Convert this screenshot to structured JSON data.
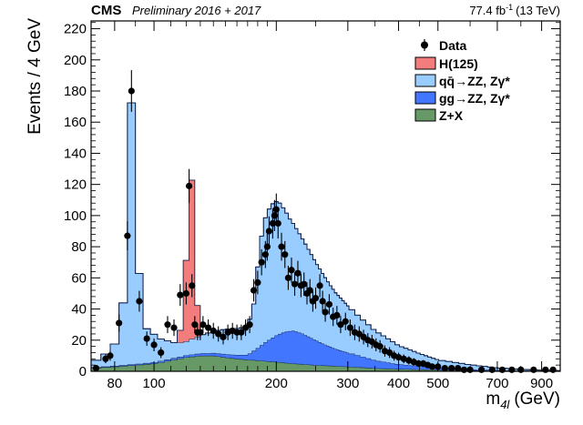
{
  "chart_data": {
    "type": "bar",
    "header": {
      "experiment": "CMS",
      "status": "Preliminary 2016 + 2017",
      "lumi": "77.4 fb",
      "lumi_sup": "-1",
      "energy": "(13 TeV)"
    },
    "ylabel": "Events / 4 GeV",
    "xlabel_main": "m",
    "xlabel_sub": "4l",
    "xlabel_unit": "(GeV)",
    "x_scale": "log",
    "xlim": [
      70,
      1000
    ],
    "ylim": [
      0,
      225
    ],
    "grid": false,
    "legend_position": "top-right",
    "y_ticks": [
      0,
      20,
      40,
      60,
      80,
      100,
      120,
      140,
      160,
      180,
      200,
      220
    ],
    "x_ticks": [
      {
        "value": 80,
        "label": "80"
      },
      {
        "value": 100,
        "label": "100"
      },
      {
        "value": 200,
        "label": "200"
      },
      {
        "value": 300,
        "label": "300"
      },
      {
        "value": 400,
        "label": "400"
      },
      {
        "value": 500,
        "label": "500"
      },
      {
        "value": 700,
        "label": "700"
      },
      {
        "value": 900,
        "label": "900"
      }
    ],
    "x_minor_ticks": [
      70,
      90,
      110,
      120,
      130,
      140,
      150,
      160,
      170,
      180,
      190,
      250,
      350,
      450,
      600,
      800,
      1000
    ],
    "series": [
      {
        "name": "H(125)",
        "color": "#f37d7d",
        "points": [
          [
            70,
            0
          ],
          [
            82,
            0
          ],
          [
            86,
            0
          ],
          [
            90,
            0
          ],
          [
            94,
            0
          ],
          [
            100,
            0
          ],
          [
            106,
            0
          ],
          [
            112,
            0
          ],
          [
            114,
            2
          ],
          [
            116,
            8
          ],
          [
            118,
            25
          ],
          [
            120,
            52
          ],
          [
            122,
            88
          ],
          [
            124,
            102
          ],
          [
            126,
            60
          ],
          [
            128,
            20
          ],
          [
            130,
            6
          ],
          [
            132,
            0
          ],
          [
            1000,
            0
          ]
        ]
      },
      {
        "name": "qq̄→ZZ, Zγ*",
        "color": "#99ccff",
        "points": [
          [
            70,
            3
          ],
          [
            74,
            6
          ],
          [
            78,
            10
          ],
          [
            80,
            14
          ],
          [
            82,
            22
          ],
          [
            84,
            40
          ],
          [
            86,
            92
          ],
          [
            88,
            168
          ],
          [
            90,
            168
          ],
          [
            92,
            58
          ],
          [
            94,
            30
          ],
          [
            96,
            22
          ],
          [
            100,
            18
          ],
          [
            104,
            14
          ],
          [
            108,
            12
          ],
          [
            112,
            10
          ],
          [
            116,
            9
          ],
          [
            120,
            9
          ],
          [
            124,
            10
          ],
          [
            128,
            11
          ],
          [
            132,
            12
          ],
          [
            140,
            14
          ],
          [
            150,
            16
          ],
          [
            160,
            17
          ],
          [
            170,
            18
          ],
          [
            176,
            30
          ],
          [
            180,
            52
          ],
          [
            184,
            70
          ],
          [
            188,
            80
          ],
          [
            192,
            84
          ],
          [
            196,
            86
          ],
          [
            200,
            86
          ],
          [
            204,
            84
          ],
          [
            208,
            80
          ],
          [
            212,
            76
          ],
          [
            216,
            72
          ],
          [
            220,
            69
          ],
          [
            230,
            62
          ],
          [
            240,
            56
          ],
          [
            250,
            50
          ],
          [
            260,
            45
          ],
          [
            270,
            40
          ],
          [
            280,
            36
          ],
          [
            300,
            30
          ],
          [
            320,
            25
          ],
          [
            350,
            19
          ],
          [
            400,
            12
          ],
          [
            450,
            8
          ],
          [
            500,
            5
          ],
          [
            600,
            3
          ],
          [
            700,
            1.5
          ],
          [
            800,
            0.8
          ],
          [
            900,
            0.4
          ],
          [
            1000,
            0.2
          ]
        ]
      },
      {
        "name": "gg→ZZ, Zγ*",
        "color": "#4376ff",
        "points": [
          [
            70,
            0.4
          ],
          [
            90,
            0.6
          ],
          [
            110,
            1
          ],
          [
            130,
            1.5
          ],
          [
            150,
            2
          ],
          [
            170,
            3
          ],
          [
            180,
            8
          ],
          [
            190,
            13
          ],
          [
            200,
            17
          ],
          [
            210,
            20
          ],
          [
            220,
            21
          ],
          [
            230,
            20
          ],
          [
            240,
            18
          ],
          [
            260,
            14
          ],
          [
            280,
            11
          ],
          [
            300,
            9
          ],
          [
            350,
            5
          ],
          [
            400,
            3
          ],
          [
            500,
            1.3
          ],
          [
            600,
            0.6
          ],
          [
            700,
            0.3
          ],
          [
            800,
            0.15
          ],
          [
            1000,
            0.05
          ]
        ]
      },
      {
        "name": "Z+X",
        "color": "#669966",
        "points": [
          [
            70,
            2
          ],
          [
            80,
            3
          ],
          [
            90,
            4
          ],
          [
            100,
            5
          ],
          [
            110,
            7
          ],
          [
            120,
            9
          ],
          [
            130,
            10
          ],
          [
            140,
            10
          ],
          [
            150,
            9
          ],
          [
            160,
            8
          ],
          [
            180,
            7
          ],
          [
            200,
            6
          ],
          [
            220,
            5
          ],
          [
            250,
            4
          ],
          [
            300,
            3
          ],
          [
            350,
            2
          ],
          [
            400,
            1.5
          ],
          [
            500,
            1
          ],
          [
            600,
            0.6
          ],
          [
            700,
            0.4
          ],
          [
            800,
            0.3
          ],
          [
            1000,
            0.2
          ]
        ]
      }
    ],
    "data_points": {
      "name": "Data",
      "color": "#000000",
      "points": [
        [
          72,
          2
        ],
        [
          76,
          8
        ],
        [
          78,
          10
        ],
        [
          82,
          31
        ],
        [
          86,
          87
        ],
        [
          88,
          180
        ],
        [
          92,
          45
        ],
        [
          96,
          21
        ],
        [
          100,
          17
        ],
        [
          104,
          12
        ],
        [
          108,
          30
        ],
        [
          112,
          28
        ],
        [
          116,
          49
        ],
        [
          120,
          50
        ],
        [
          122,
          119
        ],
        [
          124,
          55
        ],
        [
          126,
          30
        ],
        [
          128,
          25
        ],
        [
          130,
          25
        ],
        [
          132,
          30
        ],
        [
          136,
          28
        ],
        [
          140,
          26
        ],
        [
          144,
          24
        ],
        [
          148,
          22
        ],
        [
          152,
          25
        ],
        [
          156,
          26
        ],
        [
          160,
          25
        ],
        [
          164,
          25
        ],
        [
          168,
          28
        ],
        [
          172,
          30
        ],
        [
          176,
          52
        ],
        [
          180,
          57
        ],
        [
          184,
          70
        ],
        [
          188,
          75
        ],
        [
          190,
          80
        ],
        [
          192,
          90
        ],
        [
          196,
          95
        ],
        [
          198,
          100
        ],
        [
          200,
          104
        ],
        [
          202,
          95
        ],
        [
          206,
          80
        ],
        [
          210,
          75
        ],
        [
          214,
          60
        ],
        [
          218,
          65
        ],
        [
          222,
          56
        ],
        [
          226,
          63
        ],
        [
          230,
          55
        ],
        [
          234,
          56
        ],
        [
          238,
          50
        ],
        [
          242,
          52
        ],
        [
          246,
          45
        ],
        [
          250,
          47
        ],
        [
          256,
          55
        ],
        [
          260,
          45
        ],
        [
          264,
          38
        ],
        [
          270,
          43
        ],
        [
          276,
          35
        ],
        [
          282,
          36
        ],
        [
          288,
          30
        ],
        [
          296,
          32
        ],
        [
          304,
          28
        ],
        [
          312,
          25
        ],
        [
          320,
          24
        ],
        [
          328,
          22
        ],
        [
          336,
          20
        ],
        [
          344,
          19
        ],
        [
          352,
          17
        ],
        [
          360,
          16
        ],
        [
          370,
          13
        ],
        [
          380,
          12
        ],
        [
          390,
          10
        ],
        [
          400,
          9
        ],
        [
          412,
          8
        ],
        [
          424,
          7
        ],
        [
          436,
          6
        ],
        [
          448,
          5
        ],
        [
          460,
          5
        ],
        [
          472,
          4
        ],
        [
          484,
          3
        ],
        [
          500,
          3
        ],
        [
          520,
          2
        ],
        [
          540,
          2
        ],
        [
          560,
          2
        ],
        [
          580,
          1
        ],
        [
          600,
          1
        ],
        [
          640,
          1
        ],
        [
          680,
          1
        ],
        [
          720,
          1
        ],
        [
          760,
          1
        ],
        [
          800,
          1
        ],
        [
          860,
          1
        ],
        [
          920,
          1
        ],
        [
          960,
          1
        ]
      ]
    }
  }
}
